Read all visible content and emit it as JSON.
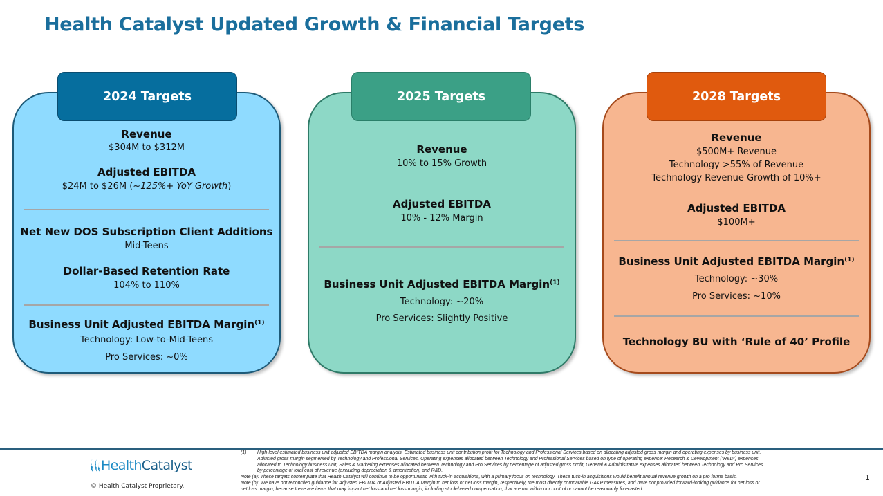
{
  "title": "Health Catalyst Updated Growth & Financial Targets",
  "colors": {
    "title": "#1a6e9c",
    "card1_fill": "#8fdbff",
    "card1_tab": "#066e9e",
    "card2_fill": "#8dd8c6",
    "card2_tab": "#3ba086",
    "card3_fill": "#f7b690",
    "card3_tab": "#e05a0e"
  },
  "cards": [
    {
      "tab": "2024 Targets",
      "lines": [
        {
          "t": "Revenue",
          "h": true
        },
        {
          "t": "$304M to $312M"
        },
        {
          "t": "Adjusted EBITDA",
          "h": true
        },
        {
          "t": "$24M to $26M (",
          "i": "~125%+ YoY Growth",
          "e": ")"
        },
        {
          "div": true
        },
        {
          "t": "Net New DOS Subscription Client Additions",
          "h": true
        },
        {
          "t": "Mid-Teens"
        },
        {
          "t": "Dollar-Based Retention Rate",
          "h": true
        },
        {
          "t": "104% to 110%"
        },
        {
          "div": true
        },
        {
          "t": "Business Unit Adjusted EBITDA Margin",
          "h": true,
          "sup": "(1)"
        },
        {
          "t": "Technology: Low-to-Mid-Teens"
        },
        {
          "t": "Pro Services: ~0%"
        }
      ]
    },
    {
      "tab": "2025 Targets",
      "lines": [
        {
          "t": "Revenue",
          "h": true
        },
        {
          "t": "10% to 15% Growth"
        },
        {
          "t": "Adjusted EBITDA",
          "h": true
        },
        {
          "t": "10% - 12% Margin"
        },
        {
          "div": true
        },
        {
          "t": "Business Unit Adjusted EBITDA Margin",
          "h": true,
          "sup": "(1)"
        },
        {
          "t": "Technology: ~20%"
        },
        {
          "t": "Pro Services: Slightly Positive"
        }
      ]
    },
    {
      "tab": "2028 Targets",
      "lines": [
        {
          "t": "Revenue",
          "h": true
        },
        {
          "t": "$500M+ Revenue"
        },
        {
          "t": "Technology >55% of Revenue"
        },
        {
          "t": "Technology Revenue Growth of 10%+"
        },
        {
          "t": "Adjusted EBITDA",
          "h": true
        },
        {
          "t": "$100M+"
        },
        {
          "div": true
        },
        {
          "t": "Business Unit Adjusted EBITDA Margin",
          "h": true,
          "sup": "(1)"
        },
        {
          "t": "Technology: ~30%"
        },
        {
          "t": "Pro Services: ~10%"
        },
        {
          "div": true
        },
        {
          "t": "Technology BU with ‘Rule of 40’ Profile",
          "h": true
        }
      ]
    }
  ],
  "footer": {
    "logo_a": "Health",
    "logo_b": "Catalyst",
    "copyright": "© Health Catalyst Proprietary.",
    "page": "1",
    "notes": [
      {
        "label": "(1)",
        "text": "High-level estimated business unit adjusted EBITDA margin analysis. Estimated business unit contribution profit for Technology and Professional Services based on allocating adjusted gross margin and operating expenses by business unit."
      },
      {
        "label": "",
        "text": "Adjusted gross margin segmented by Technology and Professional Services. Operating expenses allocated between Technology and Professional Services based on type of operating expense: Research & Development (“R&D”) expenses"
      },
      {
        "label": "",
        "text": "allocated to Technology business unit; Sales & Marketing expenses allocated between Technology and Pro Services by percentage of adjusted gross profit; General & Administrative expenses allocated between Technology and Pro Services"
      },
      {
        "label": "",
        "text": "by percentage of total cost of revenue (excluding depreciation & amortization) and R&D."
      },
      {
        "label": "",
        "text": "Note (a):  These targets contemplate that Health Catalyst will continue to be opportunistic with tuck-in acquisitions, with a primary focus on technology.  These tuck-in acquisitions would benefit annual revenue growth on a pro forma basis."
      },
      {
        "label": "",
        "text": "Note (b):  We have not reconciled guidance for Adjusted EBITDA or Adjusted EBITDA Margin to net loss or net loss margin, respectively, the most directly comparable GAAP measures, and have not provided forward-looking guidance for net loss or"
      },
      {
        "label": "",
        "text": "net loss margin, because there are items that may impact net loss and net loss margin, including stock-based compensation, that are not within our control or cannot be reasonably forecasted."
      }
    ]
  }
}
